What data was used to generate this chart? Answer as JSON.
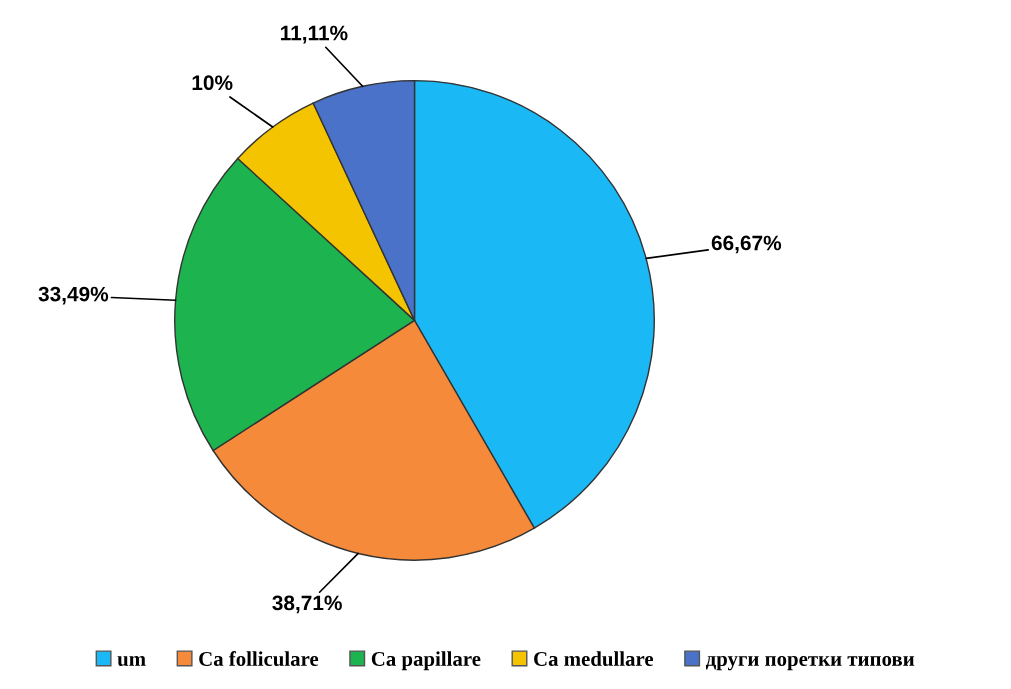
{
  "chart_data": {
    "type": "pie",
    "categories": [
      "um",
      "Ca folliculare",
      "Ca papillare",
      "Ca medullare",
      "други поретки типови"
    ],
    "values": [
      66.67,
      38.71,
      33.49,
      10,
      11.11
    ],
    "colors": [
      "#1ab8f5",
      "#f58a3a",
      "#1db34f",
      "#f5c400",
      "#4a72c8"
    ],
    "value_labels": [
      "66,67%",
      "38,71%",
      "33,49%",
      "10%",
      "11,11%"
    ],
    "legend": "bottom"
  }
}
